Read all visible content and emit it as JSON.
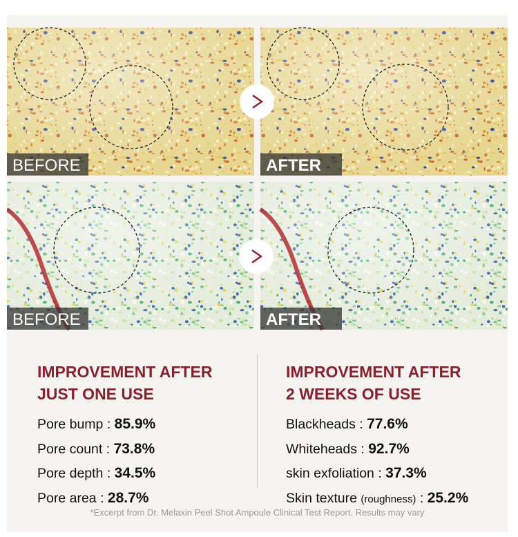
{
  "panels": [
    {
      "label": "BEFORE"
    },
    {
      "label": "AFTER"
    },
    {
      "label": "BEFORE"
    },
    {
      "label": "AFTER"
    }
  ],
  "columns": [
    {
      "heading": [
        "IMPROVEMENT AFTER",
        "JUST ONE USE"
      ],
      "items": [
        {
          "label": "Pore bump",
          "separator": ":",
          "value": "85.9%"
        },
        {
          "label": "Pore count",
          "separator": ":",
          "value": "73.8%"
        },
        {
          "label": "Pore depth",
          "separator": ":",
          "value": "34.5%"
        },
        {
          "label": "Pore area",
          "separator": ":",
          "value": "28.7%"
        }
      ]
    },
    {
      "heading": [
        "IMPROVEMENT AFTER",
        "2 WEEKS OF USE"
      ],
      "items": [
        {
          "label": "Blackheads",
          "separator": ":",
          "value": "77.6%"
        },
        {
          "label": "Whiteheads",
          "separator": ":",
          "value": "92.7%"
        },
        {
          "label": "skin exfoliation",
          "separator": ":",
          "value": "37.3%"
        },
        {
          "label": "Skin texture",
          "note": "(roughness)",
          "separator": ":",
          "value": "25.2%"
        }
      ]
    }
  ],
  "footnote": "*Excerpt from Dr. Melaxin Peel Shot Ampoule Clinical Test Report. Results may vary"
}
